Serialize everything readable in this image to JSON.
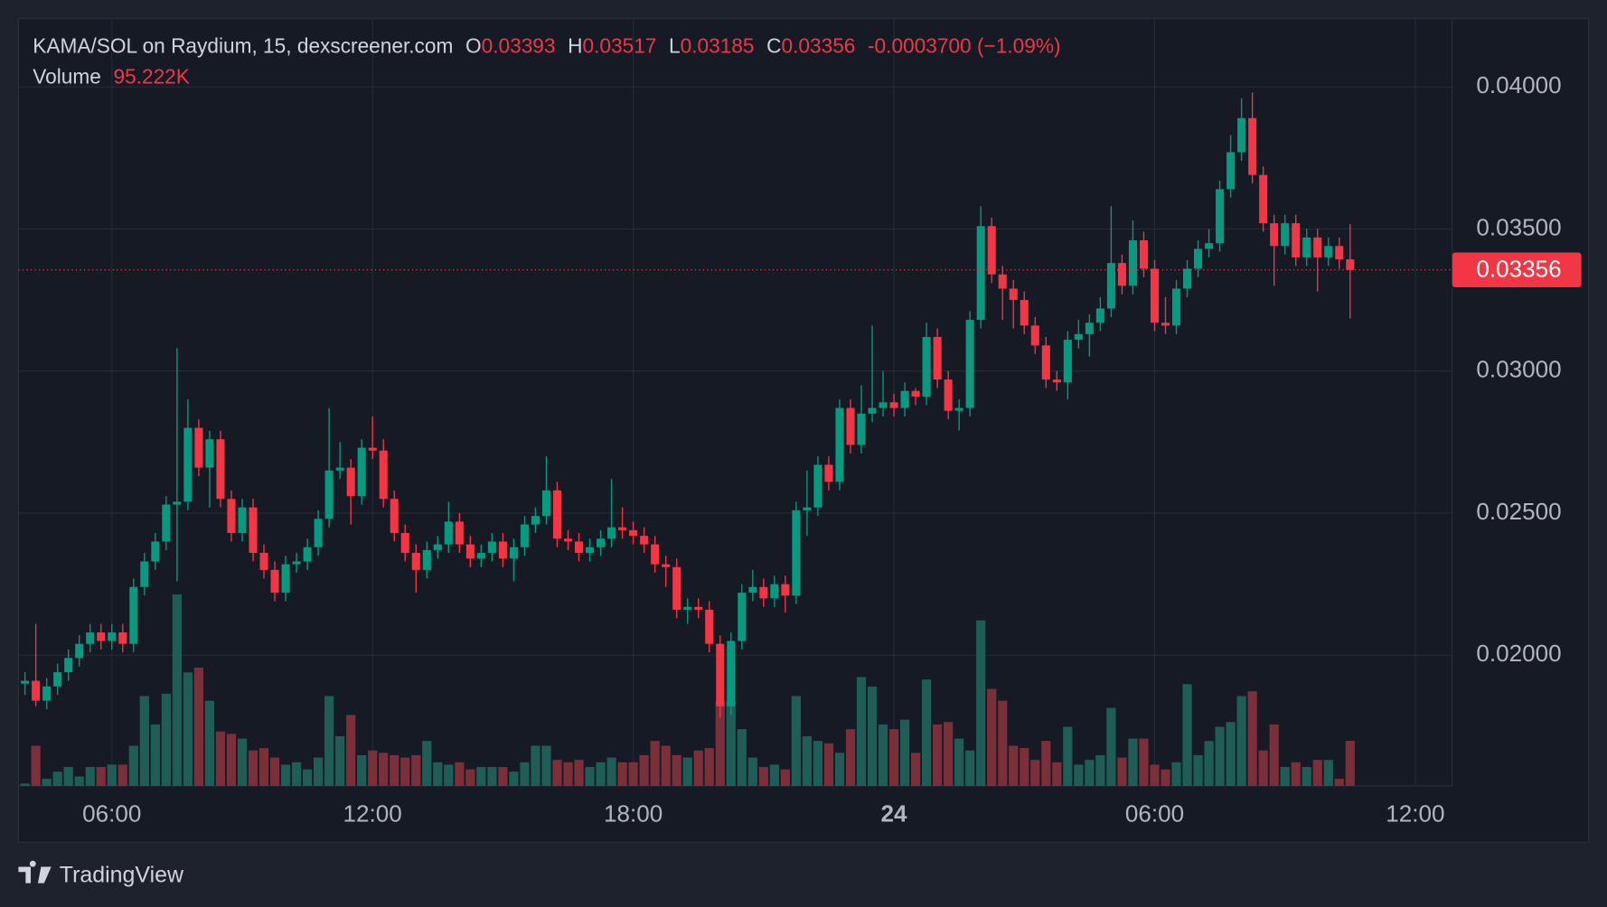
{
  "chart_data": {
    "type": "candlestick",
    "title": "KAMA/SOL on Raydium, 15, dexscreener.com",
    "ohlc_letters": {
      "open": "O",
      "high": "H",
      "low": "L",
      "close": "C"
    },
    "change": "-0.0003700 (−1.09%)",
    "volume_title": "Volume",
    "volume_value_label": "95.222K",
    "up_color": "#089981",
    "down_color": "#f23645",
    "volume_up_color": "#1f5e57",
    "volume_down_color": "#7a2f3a",
    "grid": true,
    "x": [
      4,
      4.25,
      4.5,
      4.75,
      5,
      5.25,
      5.5,
      5.75,
      6,
      6.25,
      6.5,
      6.75,
      7,
      7.25,
      7.5,
      7.75,
      8,
      8.25,
      8.5,
      8.75,
      9,
      9.25,
      9.5,
      9.75,
      10,
      10.25,
      10.5,
      10.75,
      11,
      11.25,
      11.5,
      11.75,
      12,
      12.25,
      12.5,
      12.75,
      13,
      13.25,
      13.5,
      13.75,
      14,
      14.25,
      14.5,
      14.75,
      15,
      15.25,
      15.5,
      15.75,
      16,
      16.25,
      16.5,
      16.75,
      17,
      17.25,
      17.5,
      17.75,
      18,
      18.25,
      18.5,
      18.75,
      19,
      19.25,
      19.5,
      19.75,
      20,
      20.25,
      20.5,
      20.75,
      21,
      21.25,
      21.5,
      21.75,
      22,
      22.25,
      22.5,
      22.75,
      23,
      23.25,
      23.5,
      23.75,
      24,
      24.25,
      24.5,
      24.75,
      25,
      25.25,
      25.5,
      25.75,
      26,
      26.25,
      26.5,
      26.75,
      27,
      27.25,
      27.5,
      27.75,
      28,
      28.25,
      28.5,
      28.75,
      29,
      29.25,
      29.5,
      29.75,
      30,
      30.25,
      30.5,
      30.75,
      31,
      31.25,
      31.5,
      31.75,
      32,
      32.25,
      32.5,
      32.75,
      33,
      33.25,
      33.5,
      33.75,
      34,
      34.25,
      34.5
    ],
    "open": [
      0.019,
      0.0191,
      0.0184,
      0.0189,
      0.0194,
      0.0199,
      0.0204,
      0.0208,
      0.0205,
      0.0208,
      0.0204,
      0.0224,
      0.0233,
      0.024,
      0.0253,
      0.0254,
      0.028,
      0.0266,
      0.0276,
      0.0255,
      0.0243,
      0.0252,
      0.0236,
      0.023,
      0.0222,
      0.0232,
      0.0233,
      0.0238,
      0.0248,
      0.0265,
      0.0266,
      0.0256,
      0.0273,
      0.0272,
      0.0255,
      0.0243,
      0.0236,
      0.023,
      0.0237,
      0.0239,
      0.0247,
      0.0239,
      0.0234,
      0.0236,
      0.024,
      0.0234,
      0.0238,
      0.0246,
      0.0249,
      0.0258,
      0.0241,
      0.024,
      0.0236,
      0.0238,
      0.0241,
      0.0245,
      0.0244,
      0.0242,
      0.0239,
      0.0232,
      0.0231,
      0.0216,
      0.0217,
      0.0216,
      0.0204,
      0.0182,
      0.0205,
      0.0222,
      0.0224,
      0.022,
      0.0225,
      0.0221,
      0.0251,
      0.0252,
      0.0267,
      0.0261,
      0.0287,
      0.0274,
      0.0285,
      0.0287,
      0.0289,
      0.0287,
      0.0293,
      0.0291,
      0.0312,
      0.0297,
      0.0286,
      0.0287,
      0.0318,
      0.0351,
      0.0334,
      0.0329,
      0.0325,
      0.0316,
      0.0309,
      0.0297,
      0.0296,
      0.0311,
      0.0313,
      0.0317,
      0.0322,
      0.0338,
      0.033,
      0.0346,
      0.0336,
      0.0317,
      0.0316,
      0.0329,
      0.0336,
      0.0343,
      0.0345,
      0.0364,
      0.0377,
      0.0389,
      0.0369,
      0.0352,
      0.0344,
      0.0352,
      0.034,
      0.0347,
      0.034,
      0.0344,
      0.03393
    ],
    "high": [
      0.0194,
      0.0211,
      0.0192,
      0.0197,
      0.0202,
      0.0207,
      0.0211,
      0.0211,
      0.0211,
      0.0211,
      0.0227,
      0.0236,
      0.0243,
      0.0256,
      0.0308,
      0.029,
      0.0283,
      0.0279,
      0.0279,
      0.0258,
      0.0255,
      0.0255,
      0.0239,
      0.0233,
      0.0235,
      0.0236,
      0.0241,
      0.0251,
      0.0287,
      0.0275,
      0.0269,
      0.0276,
      0.0284,
      0.0276,
      0.0258,
      0.0246,
      0.0239,
      0.024,
      0.0242,
      0.0254,
      0.025,
      0.0242,
      0.0239,
      0.0243,
      0.0243,
      0.0241,
      0.0249,
      0.0252,
      0.027,
      0.0261,
      0.0244,
      0.0243,
      0.0241,
      0.0244,
      0.0262,
      0.0252,
      0.0247,
      0.0245,
      0.0242,
      0.0235,
      0.0234,
      0.022,
      0.022,
      0.0219,
      0.0207,
      0.0208,
      0.0225,
      0.023,
      0.0227,
      0.0228,
      0.0228,
      0.0254,
      0.0265,
      0.027,
      0.027,
      0.029,
      0.029,
      0.0295,
      0.0316,
      0.03,
      0.0292,
      0.0296,
      0.0294,
      0.0317,
      0.0315,
      0.03,
      0.029,
      0.0321,
      0.0358,
      0.0354,
      0.0337,
      0.0332,
      0.0328,
      0.0319,
      0.0312,
      0.03,
      0.0314,
      0.0318,
      0.032,
      0.0326,
      0.0358,
      0.0341,
      0.0353,
      0.0349,
      0.0339,
      0.0326,
      0.0332,
      0.0339,
      0.0346,
      0.035,
      0.0367,
      0.0383,
      0.0396,
      0.0398,
      0.0372,
      0.0355,
      0.0355,
      0.0355,
      0.035,
      0.035,
      0.0347,
      0.0347,
      0.03517
    ],
    "low": [
      0.0186,
      0.0182,
      0.0181,
      0.0186,
      0.0191,
      0.0196,
      0.0201,
      0.0202,
      0.0202,
      0.0201,
      0.0201,
      0.0221,
      0.023,
      0.0237,
      0.0226,
      0.0251,
      0.0263,
      0.0252,
      0.0252,
      0.024,
      0.024,
      0.0233,
      0.0227,
      0.0219,
      0.0219,
      0.0229,
      0.023,
      0.0235,
      0.0245,
      0.0262,
      0.0246,
      0.0253,
      0.0269,
      0.0252,
      0.024,
      0.0233,
      0.0222,
      0.0227,
      0.0234,
      0.0236,
      0.0236,
      0.0231,
      0.0231,
      0.0233,
      0.0231,
      0.0226,
      0.0235,
      0.0243,
      0.0246,
      0.0238,
      0.0237,
      0.0233,
      0.0233,
      0.0235,
      0.0238,
      0.0241,
      0.0239,
      0.0236,
      0.0229,
      0.0224,
      0.0213,
      0.0211,
      0.0213,
      0.0201,
      0.0178,
      0.0179,
      0.0202,
      0.0219,
      0.0217,
      0.0217,
      0.0215,
      0.0218,
      0.0242,
      0.0249,
      0.0258,
      0.0258,
      0.0271,
      0.0271,
      0.0282,
      0.0284,
      0.0284,
      0.0284,
      0.0288,
      0.0288,
      0.0294,
      0.0283,
      0.0279,
      0.0284,
      0.0315,
      0.0331,
      0.0318,
      0.0315,
      0.0313,
      0.0306,
      0.0294,
      0.0293,
      0.029,
      0.0308,
      0.0305,
      0.0314,
      0.0319,
      0.0327,
      0.0327,
      0.0333,
      0.0314,
      0.0313,
      0.0313,
      0.0326,
      0.0333,
      0.034,
      0.0342,
      0.0361,
      0.0374,
      0.0366,
      0.0349,
      0.033,
      0.0341,
      0.0337,
      0.0337,
      0.0328,
      0.0337,
      0.0336,
      0.03185
    ],
    "close": [
      0.0191,
      0.0184,
      0.0189,
      0.0194,
      0.0199,
      0.0204,
      0.0208,
      0.0205,
      0.0208,
      0.0204,
      0.0224,
      0.0233,
      0.024,
      0.0253,
      0.0254,
      0.028,
      0.0266,
      0.0276,
      0.0255,
      0.0243,
      0.0252,
      0.0236,
      0.023,
      0.0222,
      0.0232,
      0.0233,
      0.0238,
      0.0248,
      0.0265,
      0.0266,
      0.0256,
      0.0273,
      0.0272,
      0.0255,
      0.0243,
      0.0236,
      0.023,
      0.0237,
      0.0239,
      0.0247,
      0.0239,
      0.0234,
      0.0236,
      0.024,
      0.0234,
      0.0238,
      0.0246,
      0.0249,
      0.0258,
      0.0241,
      0.024,
      0.0236,
      0.0238,
      0.0241,
      0.0245,
      0.0244,
      0.0242,
      0.0239,
      0.0232,
      0.0231,
      0.0216,
      0.0217,
      0.0216,
      0.0204,
      0.0182,
      0.0205,
      0.0222,
      0.0224,
      0.022,
      0.0225,
      0.0221,
      0.0251,
      0.0252,
      0.0267,
      0.0261,
      0.0287,
      0.0274,
      0.0285,
      0.0287,
      0.0289,
      0.0287,
      0.0293,
      0.0291,
      0.0312,
      0.0297,
      0.0286,
      0.0287,
      0.0318,
      0.0351,
      0.0334,
      0.0329,
      0.0325,
      0.0316,
      0.0309,
      0.0297,
      0.0296,
      0.0311,
      0.0313,
      0.0317,
      0.0322,
      0.0338,
      0.033,
      0.0346,
      0.0336,
      0.0317,
      0.0316,
      0.0329,
      0.0336,
      0.0343,
      0.0345,
      0.0364,
      0.0377,
      0.0389,
      0.0369,
      0.0352,
      0.0344,
      0.0352,
      0.034,
      0.0347,
      0.034,
      0.0344,
      0.03393,
      0.03356
    ],
    "volume": [
      5,
      85,
      15,
      30,
      40,
      20,
      40,
      40,
      45,
      45,
      85,
      190,
      130,
      195,
      405,
      240,
      250,
      180,
      115,
      110,
      100,
      75,
      80,
      60,
      45,
      50,
      35,
      60,
      190,
      105,
      150,
      65,
      75,
      70,
      65,
      60,
      65,
      95,
      50,
      45,
      50,
      35,
      40,
      40,
      40,
      30,
      50,
      85,
      85,
      55,
      50,
      55,
      40,
      50,
      60,
      50,
      50,
      65,
      95,
      85,
      65,
      60,
      75,
      80,
      180,
      180,
      120,
      60,
      40,
      45,
      35,
      190,
      105,
      95,
      90,
      70,
      120,
      230,
      210,
      130,
      120,
      140,
      70,
      225,
      130,
      135,
      100,
      75,
      350,
      205,
      180,
      85,
      80,
      55,
      95,
      50,
      125,
      45,
      55,
      65,
      165,
      60,
      100,
      100,
      45,
      35,
      50,
      215,
      65,
      95,
      125,
      135,
      190,
      200,
      75,
      130,
      40,
      50,
      40,
      55,
      55,
      15,
      95.222
    ],
    "xlim": [
      3.85,
      36.85
    ],
    "xticks": [
      {
        "value": 6,
        "label": "06:00"
      },
      {
        "value": 12,
        "label": "12:00"
      },
      {
        "value": 18,
        "label": "18:00"
      },
      24,
      {
        "value": 30,
        "label": "06:00"
      },
      {
        "value": 36,
        "label": "12:00"
      }
    ],
    "ylim": [
      0.0154,
      0.0424
    ],
    "yticks": [
      {
        "value": 0.02,
        "label": "0.02000"
      },
      {
        "value": 0.025,
        "label": "0.02500"
      },
      {
        "value": 0.03,
        "label": "0.03000"
      },
      {
        "value": 0.035,
        "label": "0.03500"
      },
      {
        "value": 0.04,
        "label": "0.04000"
      }
    ]
  },
  "footer": "TradingView"
}
